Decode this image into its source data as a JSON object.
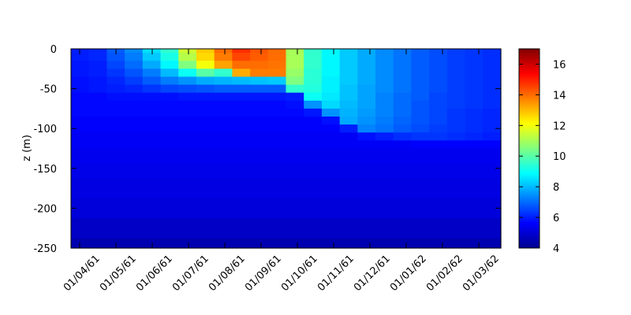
{
  "chart_data": {
    "type": "heatmap",
    "title": "",
    "xlabel": "",
    "ylabel": "z (m)",
    "x_tick_labels": [
      "01/04/61",
      "01/05/61",
      "01/06/61",
      "01/07/61",
      "01/08/61",
      "01/09/61",
      "01/10/61",
      "01/11/61",
      "01/12/61",
      "01/01/62",
      "01/02/62",
      "01/03/62"
    ],
    "y_ticks": [
      0,
      -50,
      -100,
      -150,
      -200,
      -250
    ],
    "ylim": [
      -250,
      0
    ],
    "colorbar": {
      "ticks": [
        4,
        6,
        8,
        10,
        12,
        14,
        16
      ],
      "range": [
        4,
        17
      ],
      "colormap": [
        "#00008f",
        "#0000ff",
        "#00ffff",
        "#ffff00",
        "#ff0000",
        "#800000"
      ]
    },
    "grid": false,
    "depth_levels": [
      0,
      -10,
      -20,
      -30,
      -40,
      -50,
      -60,
      -70,
      -80,
      -90,
      -100,
      -110,
      -120,
      -130,
      -140,
      -150,
      -175,
      -200,
      -225,
      -250
    ],
    "time_labels": [
      "01/04/61",
      "15/04/61",
      "01/05/61",
      "15/05/61",
      "01/06/61",
      "15/06/61",
      "01/07/61",
      "15/07/61",
      "01/08/61",
      "15/08/61",
      "01/09/61",
      "15/09/61",
      "01/10/61",
      "15/10/61",
      "01/11/61",
      "15/11/61",
      "01/12/61",
      "15/12/61",
      "01/01/62",
      "15/01/62",
      "01/02/62",
      "15/02/62",
      "01/03/62",
      "15/03/62"
    ],
    "temperature": [
      [
        6.0,
        6.0,
        5.9,
        5.9,
        5.8,
        5.8,
        5.7,
        5.7,
        5.7,
        5.6,
        5.6,
        5.5,
        5.5,
        5.4,
        5.4,
        5.3,
        5.2,
        5.1,
        4.8,
        4.5
      ],
      [
        6.1,
        6.1,
        6.0,
        6.0,
        5.9,
        5.9,
        5.7,
        5.7,
        5.7,
        5.6,
        5.6,
        5.5,
        5.5,
        5.4,
        5.4,
        5.3,
        5.2,
        5.1,
        4.8,
        4.5
      ],
      [
        6.8,
        6.7,
        6.5,
        6.3,
        6.1,
        6.0,
        5.8,
        5.7,
        5.7,
        5.6,
        5.6,
        5.5,
        5.5,
        5.4,
        5.4,
        5.3,
        5.2,
        5.1,
        4.8,
        4.5
      ],
      [
        7.4,
        7.2,
        7.0,
        6.7,
        6.4,
        6.1,
        5.8,
        5.7,
        5.7,
        5.6,
        5.6,
        5.5,
        5.5,
        5.4,
        5.4,
        5.3,
        5.2,
        5.1,
        4.8,
        4.5
      ],
      [
        8.5,
        8.2,
        7.8,
        7.2,
        6.8,
        6.3,
        5.8,
        5.7,
        5.7,
        5.6,
        5.6,
        5.5,
        5.5,
        5.4,
        5.4,
        5.3,
        5.2,
        5.1,
        4.8,
        4.5
      ],
      [
        9.5,
        9.2,
        8.8,
        8.0,
        7.2,
        6.5,
        5.8,
        5.7,
        5.7,
        5.6,
        5.6,
        5.5,
        5.5,
        5.4,
        5.4,
        5.3,
        5.2,
        5.1,
        4.8,
        4.5
      ],
      [
        11.5,
        11.2,
        10.5,
        9.0,
        7.5,
        6.6,
        5.9,
        5.7,
        5.7,
        5.6,
        5.6,
        5.5,
        5.5,
        5.4,
        5.4,
        5.3,
        5.2,
        5.1,
        4.8,
        4.5
      ],
      [
        12.8,
        12.6,
        12.0,
        10.0,
        7.8,
        6.7,
        5.9,
        5.7,
        5.7,
        5.6,
        5.6,
        5.5,
        5.5,
        5.4,
        5.4,
        5.3,
        5.2,
        5.1,
        4.8,
        4.5
      ],
      [
        14.0,
        13.8,
        13.3,
        9.5,
        7.9,
        6.8,
        5.9,
        5.7,
        5.7,
        5.6,
        5.6,
        5.5,
        5.5,
        5.4,
        5.4,
        5.3,
        5.2,
        5.1,
        4.8,
        4.5
      ],
      [
        14.8,
        14.5,
        14.0,
        13.2,
        8.0,
        6.8,
        5.9,
        5.7,
        5.7,
        5.6,
        5.6,
        5.5,
        5.5,
        5.4,
        5.4,
        5.3,
        5.2,
        5.1,
        4.8,
        4.5
      ],
      [
        14.3,
        14.2,
        14.0,
        13.8,
        8.1,
        6.8,
        5.9,
        5.7,
        5.7,
        5.6,
        5.6,
        5.5,
        5.5,
        5.4,
        5.4,
        5.3,
        5.2,
        5.1,
        4.8,
        4.5
      ],
      [
        14.0,
        14.0,
        13.9,
        13.8,
        8.2,
        6.8,
        5.9,
        5.7,
        5.7,
        5.6,
        5.6,
        5.5,
        5.5,
        5.4,
        5.4,
        5.3,
        5.2,
        5.1,
        4.8,
        4.5
      ],
      [
        11.0,
        11.0,
        11.0,
        10.8,
        10.5,
        9.5,
        6.0,
        5.8,
        5.7,
        5.6,
        5.6,
        5.5,
        5.5,
        5.4,
        5.4,
        5.3,
        5.2,
        5.1,
        4.8,
        4.5
      ],
      [
        9.5,
        9.5,
        9.5,
        9.4,
        9.4,
        9.3,
        9.0,
        7.5,
        5.9,
        5.6,
        5.6,
        5.5,
        5.5,
        5.4,
        5.4,
        5.3,
        5.2,
        5.1,
        4.8,
        4.5
      ],
      [
        8.8,
        8.8,
        8.8,
        8.8,
        8.7,
        8.7,
        8.6,
        8.4,
        7.5,
        5.8,
        5.6,
        5.5,
        5.5,
        5.4,
        5.4,
        5.3,
        5.2,
        5.1,
        4.8,
        4.5
      ],
      [
        8.2,
        8.2,
        8.2,
        8.2,
        8.2,
        8.1,
        8.1,
        8.0,
        7.9,
        7.8,
        6.0,
        5.5,
        5.5,
        5.4,
        5.4,
        5.3,
        5.2,
        5.1,
        4.8,
        4.5
      ],
      [
        7.8,
        7.8,
        7.8,
        7.8,
        7.8,
        7.7,
        7.7,
        7.7,
        7.6,
        7.5,
        7.3,
        5.8,
        5.5,
        5.4,
        5.4,
        5.3,
        5.2,
        5.1,
        4.8,
        4.5
      ],
      [
        7.4,
        7.4,
        7.4,
        7.4,
        7.4,
        7.4,
        7.3,
        7.3,
        7.3,
        7.2,
        7.1,
        6.0,
        5.5,
        5.4,
        5.4,
        5.3,
        5.2,
        5.1,
        4.8,
        4.5
      ],
      [
        7.1,
        7.1,
        7.1,
        7.1,
        7.1,
        7.1,
        7.0,
        7.0,
        7.0,
        6.9,
        6.8,
        6.2,
        5.5,
        5.4,
        5.4,
        5.3,
        5.2,
        5.1,
        4.8,
        4.5
      ],
      [
        6.8,
        6.8,
        6.8,
        6.8,
        6.8,
        6.8,
        6.8,
        6.7,
        6.7,
        6.7,
        6.6,
        6.3,
        5.6,
        5.4,
        5.4,
        5.3,
        5.2,
        5.1,
        4.8,
        4.5
      ],
      [
        6.6,
        6.6,
        6.6,
        6.6,
        6.6,
        6.6,
        6.5,
        6.5,
        6.5,
        6.5,
        6.4,
        6.3,
        5.6,
        5.4,
        5.4,
        5.3,
        5.2,
        5.1,
        4.8,
        4.5
      ],
      [
        6.4,
        6.4,
        6.4,
        6.4,
        6.4,
        6.4,
        6.4,
        6.4,
        6.3,
        6.3,
        6.3,
        6.2,
        5.6,
        5.4,
        5.4,
        5.3,
        5.2,
        5.1,
        4.8,
        4.5
      ],
      [
        6.3,
        6.3,
        6.3,
        6.3,
        6.3,
        6.3,
        6.3,
        6.3,
        6.2,
        6.2,
        6.2,
        6.1,
        5.6,
        5.4,
        5.4,
        5.3,
        5.2,
        5.1,
        4.8,
        4.5
      ],
      [
        6.2,
        6.2,
        6.2,
        6.2,
        6.2,
        6.2,
        6.2,
        6.2,
        6.1,
        6.1,
        6.1,
        6.0,
        5.6,
        5.4,
        5.4,
        5.3,
        5.2,
        5.1,
        4.8,
        4.5
      ]
    ]
  }
}
